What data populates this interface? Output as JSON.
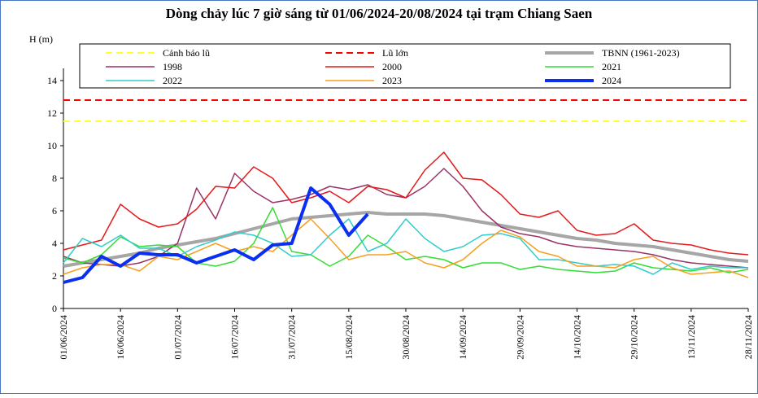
{
  "chart_data": {
    "type": "line",
    "title": "Dòng chảy lúc 7 giờ sáng từ 01/06/2024-20/08/2024 tại trạm Chiang Saen",
    "y_label": "H (m)",
    "x": [
      "01/06/2024",
      "06/06/2024",
      "11/06/2024",
      "16/06/2024",
      "21/06/2024",
      "26/06/2024",
      "01/07/2024",
      "06/07/2024",
      "11/07/2024",
      "16/07/2024",
      "21/07/2024",
      "26/07/2024",
      "31/07/2024",
      "05/08/2024",
      "10/08/2024",
      "15/08/2024",
      "20/08/2024",
      "25/08/2024",
      "30/08/2024",
      "04/09/2024",
      "09/09/2024",
      "14/09/2024",
      "19/09/2024",
      "24/09/2024",
      "29/09/2024",
      "04/10/2024",
      "09/10/2024",
      "14/10/2024",
      "19/10/2024",
      "24/10/2024",
      "29/10/2024",
      "03/11/2024",
      "08/11/2024",
      "13/11/2024",
      "18/11/2024",
      "23/11/2024",
      "28/11/2024"
    ],
    "xlim": [
      "01/06/2024",
      "28/11/2024"
    ],
    "xticks": [
      "01/06/2024",
      "16/06/2024",
      "01/07/2024",
      "16/07/2024",
      "31/07/2024",
      "15/08/2024",
      "30/08/2024",
      "14/09/2024",
      "29/09/2024",
      "14/10/2024",
      "29/10/2024",
      "13/11/2024",
      "28/11/2024"
    ],
    "ylim": [
      0,
      14
    ],
    "yticks": [
      0,
      2,
      4,
      6,
      8,
      10,
      12,
      14
    ],
    "reference_lines": [
      {
        "name": "Cảnh báo lũ",
        "color": "#ffff33",
        "value": 11.5
      },
      {
        "name": "Lũ lớn",
        "color": "#ff0000",
        "value": 12.8
      }
    ],
    "series": [
      {
        "name": "TBNN (1961-2023)",
        "color": "#a6a6a6",
        "width": 4,
        "values": [
          2.6,
          2.8,
          3.0,
          3.2,
          3.4,
          3.7,
          3.9,
          4.1,
          4.3,
          4.6,
          4.9,
          5.2,
          5.5,
          5.6,
          5.7,
          5.8,
          5.9,
          5.8,
          5.8,
          5.8,
          5.7,
          5.5,
          5.3,
          5.1,
          4.9,
          4.7,
          4.5,
          4.3,
          4.2,
          4.0,
          3.9,
          3.8,
          3.6,
          3.4,
          3.2,
          3.0,
          2.9
        ]
      },
      {
        "name": "1998",
        "color": "#993366",
        "width": 1.5,
        "values": [
          3.2,
          2.8,
          2.7,
          2.6,
          2.8,
          3.2,
          4.0,
          7.4,
          5.5,
          8.3,
          7.2,
          6.5,
          6.7,
          7.0,
          7.5,
          7.3,
          7.6,
          7.0,
          6.8,
          7.5,
          8.6,
          7.5,
          6.0,
          5.0,
          4.6,
          4.4,
          4.0,
          3.8,
          3.7,
          3.6,
          3.5,
          3.3,
          3.0,
          2.8,
          2.7,
          2.6,
          2.5
        ]
      },
      {
        "name": "2000",
        "color": "#e31a1c",
        "width": 1.5,
        "values": [
          3.6,
          3.9,
          4.2,
          6.4,
          5.5,
          5.0,
          5.2,
          6.1,
          7.5,
          7.4,
          8.7,
          8.0,
          6.5,
          6.8,
          7.2,
          6.5,
          7.5,
          7.3,
          6.8,
          8.5,
          9.6,
          8.0,
          7.9,
          7.0,
          5.8,
          5.6,
          6.0,
          4.8,
          4.5,
          4.6,
          5.2,
          4.2,
          4.0,
          3.9,
          3.6,
          3.4,
          3.3
        ]
      },
      {
        "name": "2021",
        "color": "#33dd33",
        "width": 1.5,
        "values": [
          3.1,
          2.8,
          3.3,
          4.4,
          3.8,
          3.9,
          3.8,
          2.8,
          2.6,
          2.9,
          4.0,
          6.2,
          3.5,
          3.3,
          2.6,
          3.2,
          4.5,
          3.8,
          3.0,
          3.2,
          3.0,
          2.5,
          2.8,
          2.8,
          2.4,
          2.6,
          2.4,
          2.3,
          2.2,
          2.3,
          2.8,
          2.5,
          2.4,
          2.3,
          2.5,
          2.2,
          2.4
        ]
      },
      {
        "name": "2022",
        "color": "#33cccc",
        "width": 1.5,
        "values": [
          2.8,
          4.3,
          3.8,
          4.5,
          3.7,
          3.7,
          3.2,
          3.8,
          4.2,
          4.7,
          4.5,
          4.0,
          3.2,
          3.3,
          4.5,
          5.5,
          3.5,
          4.0,
          5.5,
          4.3,
          3.5,
          3.8,
          4.5,
          4.6,
          4.3,
          3.0,
          3.0,
          2.8,
          2.6,
          2.7,
          2.6,
          2.1,
          2.8,
          2.4,
          2.6,
          2.5,
          2.5
        ]
      },
      {
        "name": "2023",
        "color": "#f5a020",
        "width": 1.5,
        "values": [
          2.1,
          2.5,
          2.7,
          2.7,
          2.3,
          3.2,
          3.0,
          3.5,
          4.0,
          3.5,
          3.8,
          3.5,
          4.5,
          5.5,
          4.3,
          3.0,
          3.3,
          3.3,
          3.5,
          2.8,
          2.5,
          3.0,
          4.0,
          4.8,
          4.4,
          3.5,
          3.2,
          2.6,
          2.6,
          2.5,
          3.0,
          3.2,
          2.5,
          2.1,
          2.2,
          2.3,
          1.9
        ]
      },
      {
        "name": "2024",
        "color": "#0a2ff0",
        "width": 4,
        "values": [
          1.6,
          1.9,
          3.2,
          2.6,
          3.4,
          3.3,
          3.3,
          2.8,
          3.2,
          3.6,
          3.0,
          3.9,
          4.0,
          7.4,
          6.4,
          4.5,
          5.8,
          null,
          null,
          null,
          null,
          null,
          null,
          null,
          null,
          null,
          null,
          null,
          null,
          null,
          null,
          null,
          null,
          null,
          null,
          null,
          null
        ]
      }
    ]
  }
}
